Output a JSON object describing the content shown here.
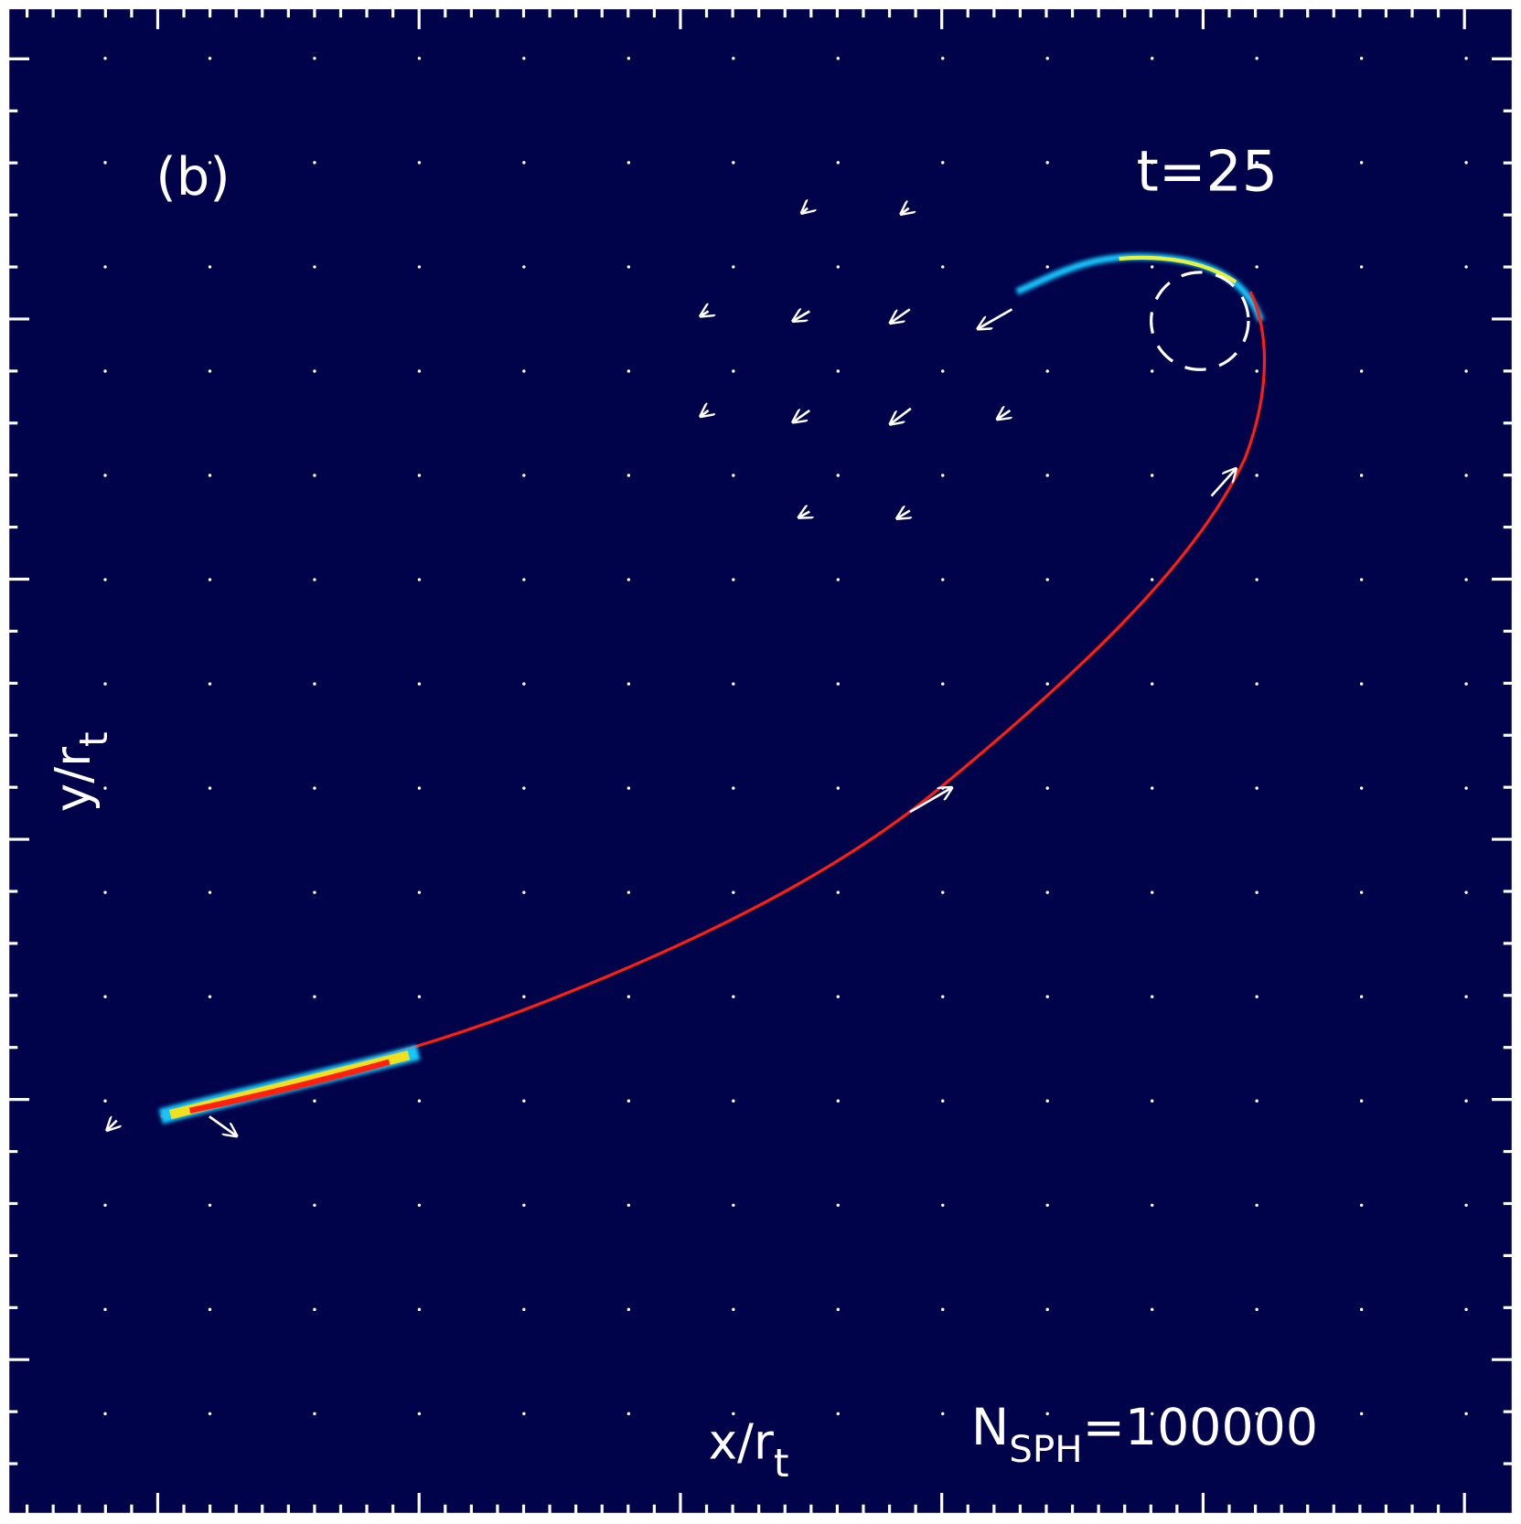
{
  "chart_data": {
    "type": "density",
    "panel": "(b)",
    "time": "t=25",
    "xlabel": {
      "base": "x/r",
      "sub": "t"
    },
    "ylabel": {
      "base": "y/r",
      "sub": "t"
    },
    "annotation": {
      "base": "N",
      "sub": "SPH",
      "rest": "=100000"
    }
  }
}
